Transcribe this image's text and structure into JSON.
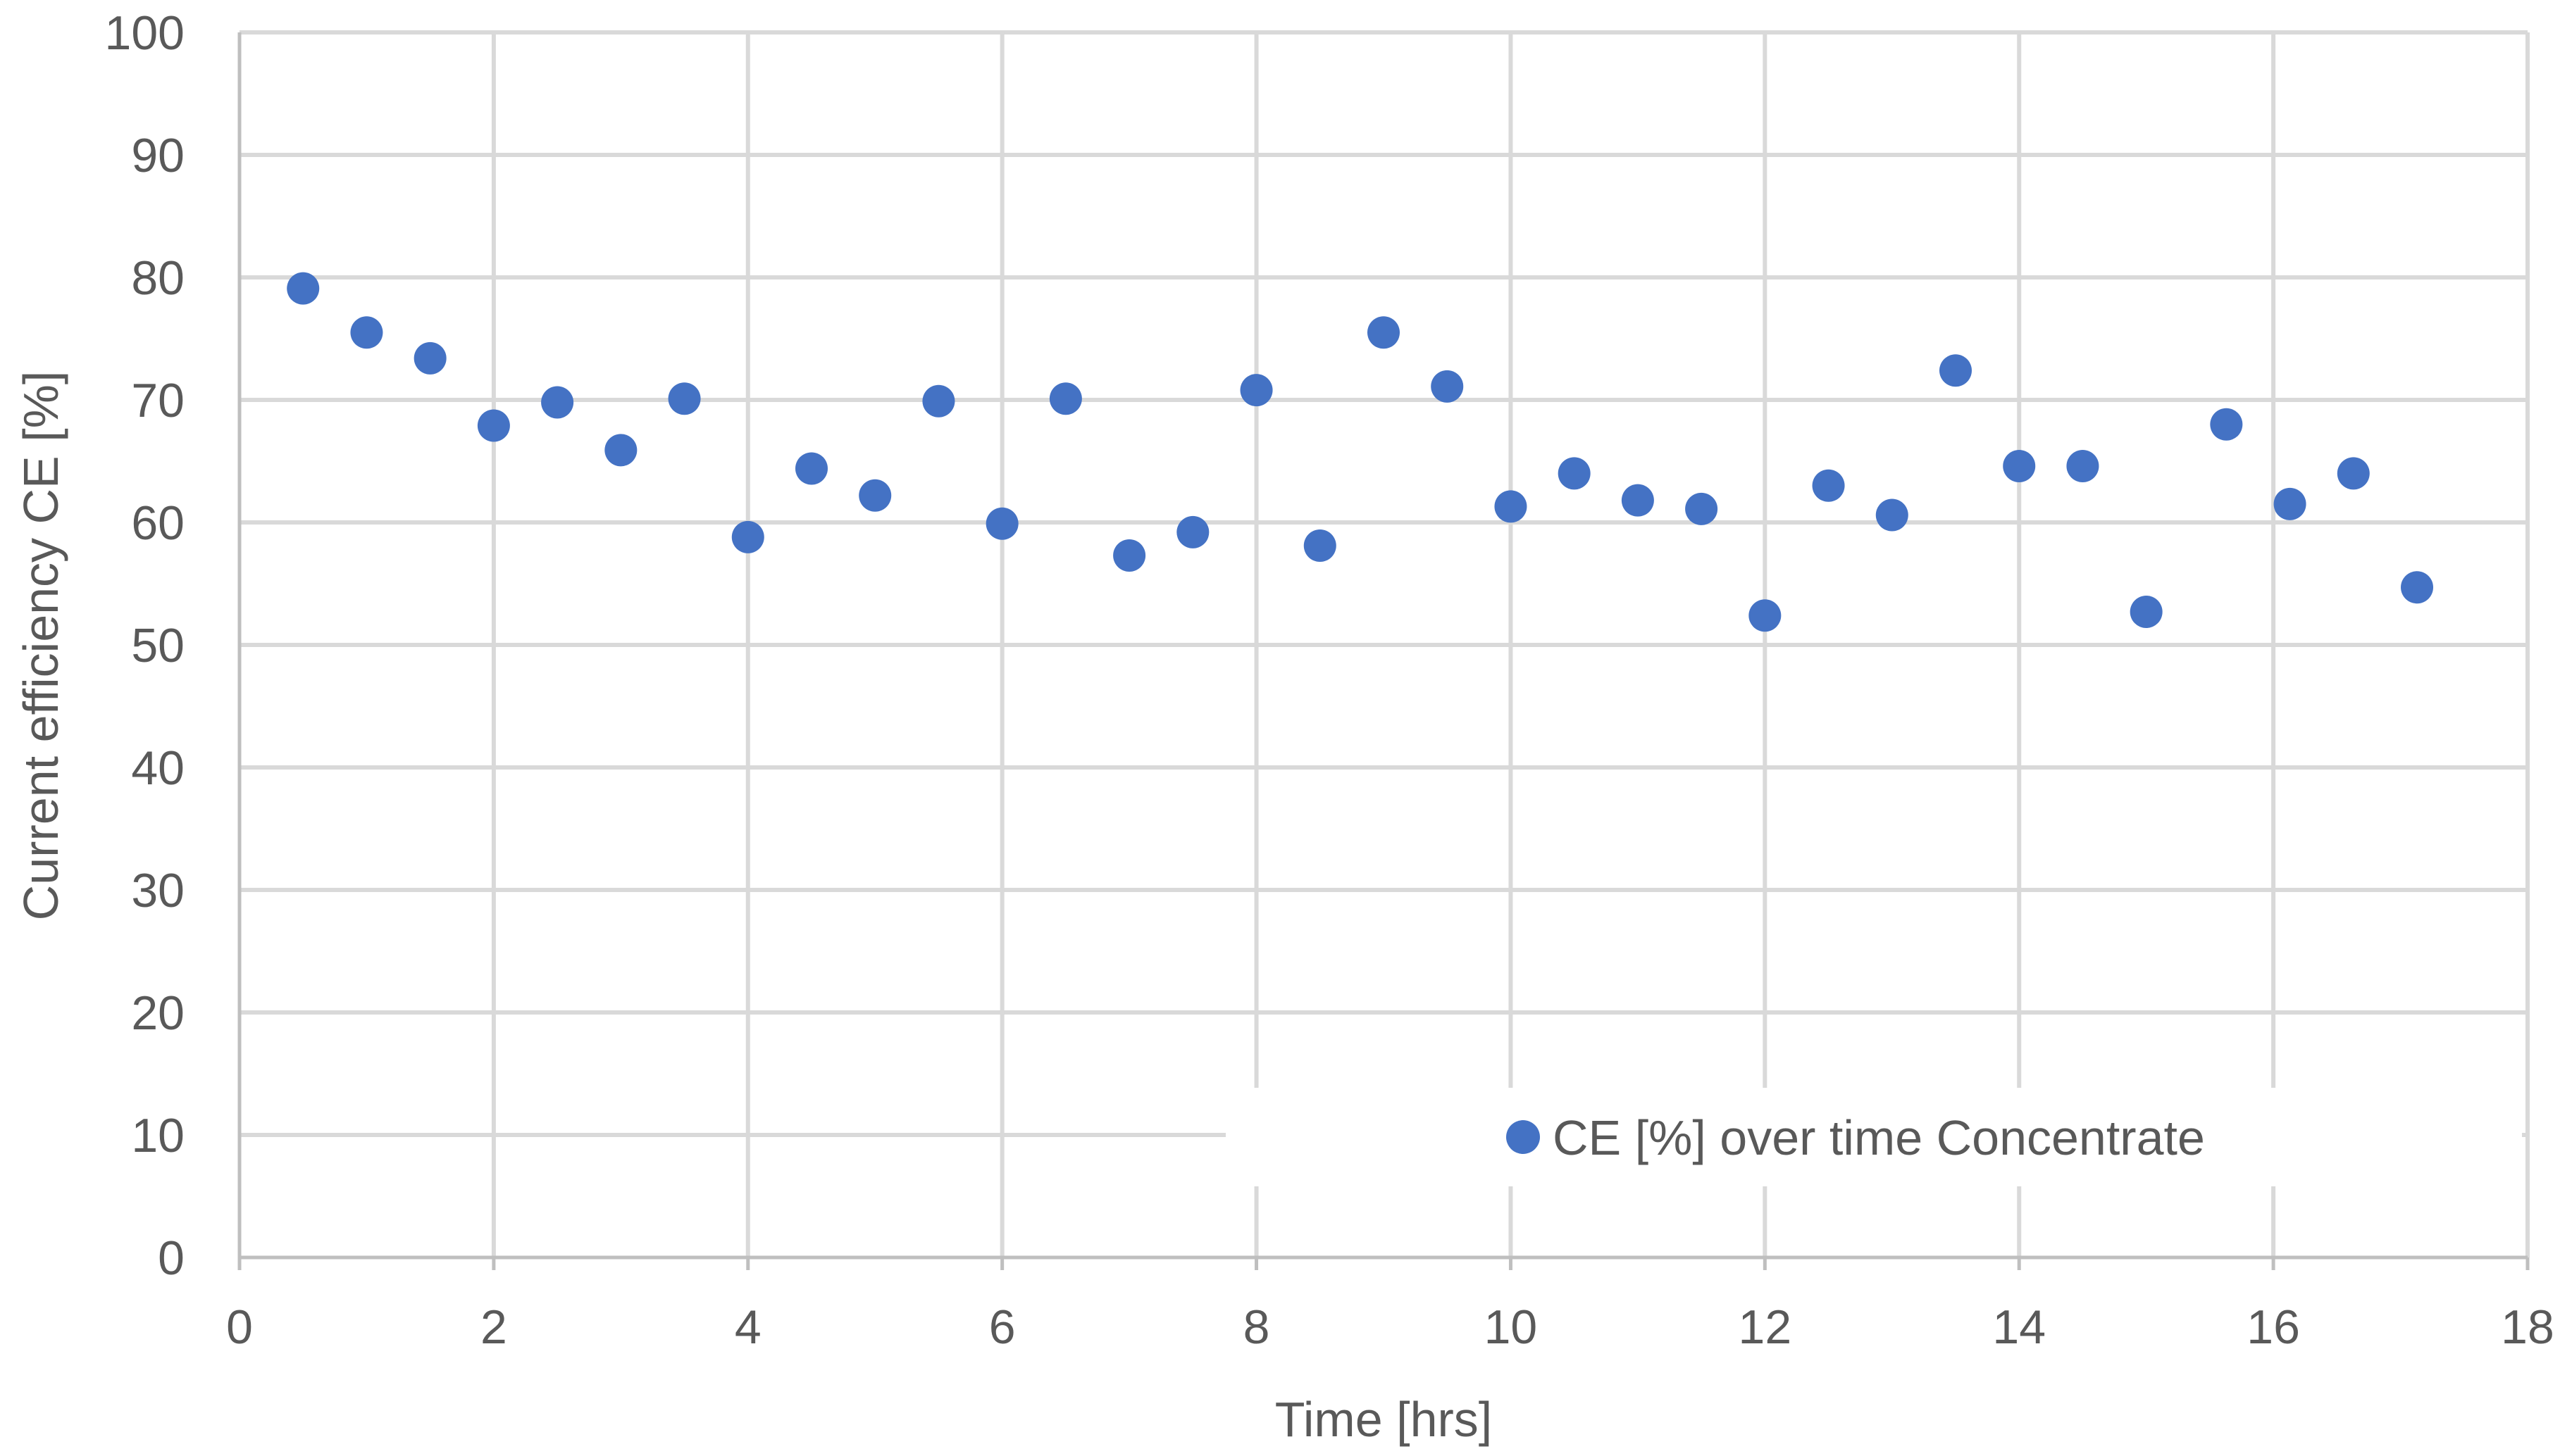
{
  "chart_data": {
    "type": "scatter",
    "title": "",
    "xlabel": "Time [hrs]",
    "ylabel": "Current efficiency CE [%]",
    "xlim": [
      0,
      18
    ],
    "ylim": [
      0,
      100
    ],
    "xticks": [
      0,
      2,
      4,
      6,
      8,
      10,
      12,
      14,
      16,
      18
    ],
    "yticks": [
      0,
      10,
      20,
      30,
      40,
      50,
      60,
      70,
      80,
      90,
      100
    ],
    "grid": true,
    "legend_position": "bottom-right",
    "series": [
      {
        "name": "CE [%] over time Concentrate",
        "color": "#4472c4",
        "x": [
          0.5,
          1.0,
          1.5,
          2.0,
          2.5,
          3.0,
          3.5,
          4.0,
          4.5,
          5.0,
          5.5,
          6.0,
          6.5,
          7.0,
          7.5,
          8.0,
          8.5,
          9.0,
          9.5,
          10.0,
          10.5,
          11.0,
          11.5,
          12.0,
          12.5,
          13.0,
          13.5,
          14.0,
          14.5,
          15.0,
          15.63,
          16.13,
          16.63,
          17.13
        ],
        "y": [
          79.1,
          75.5,
          73.4,
          67.9,
          69.8,
          65.9,
          70.1,
          58.8,
          64.4,
          62.2,
          69.9,
          59.9,
          70.1,
          57.3,
          59.2,
          70.8,
          58.1,
          75.5,
          71.1,
          61.3,
          64.0,
          61.8,
          61.1,
          52.4,
          63.0,
          60.6,
          72.4,
          64.6,
          64.6,
          52.7,
          68.0,
          61.5,
          64.0,
          54.7
        ]
      }
    ]
  }
}
